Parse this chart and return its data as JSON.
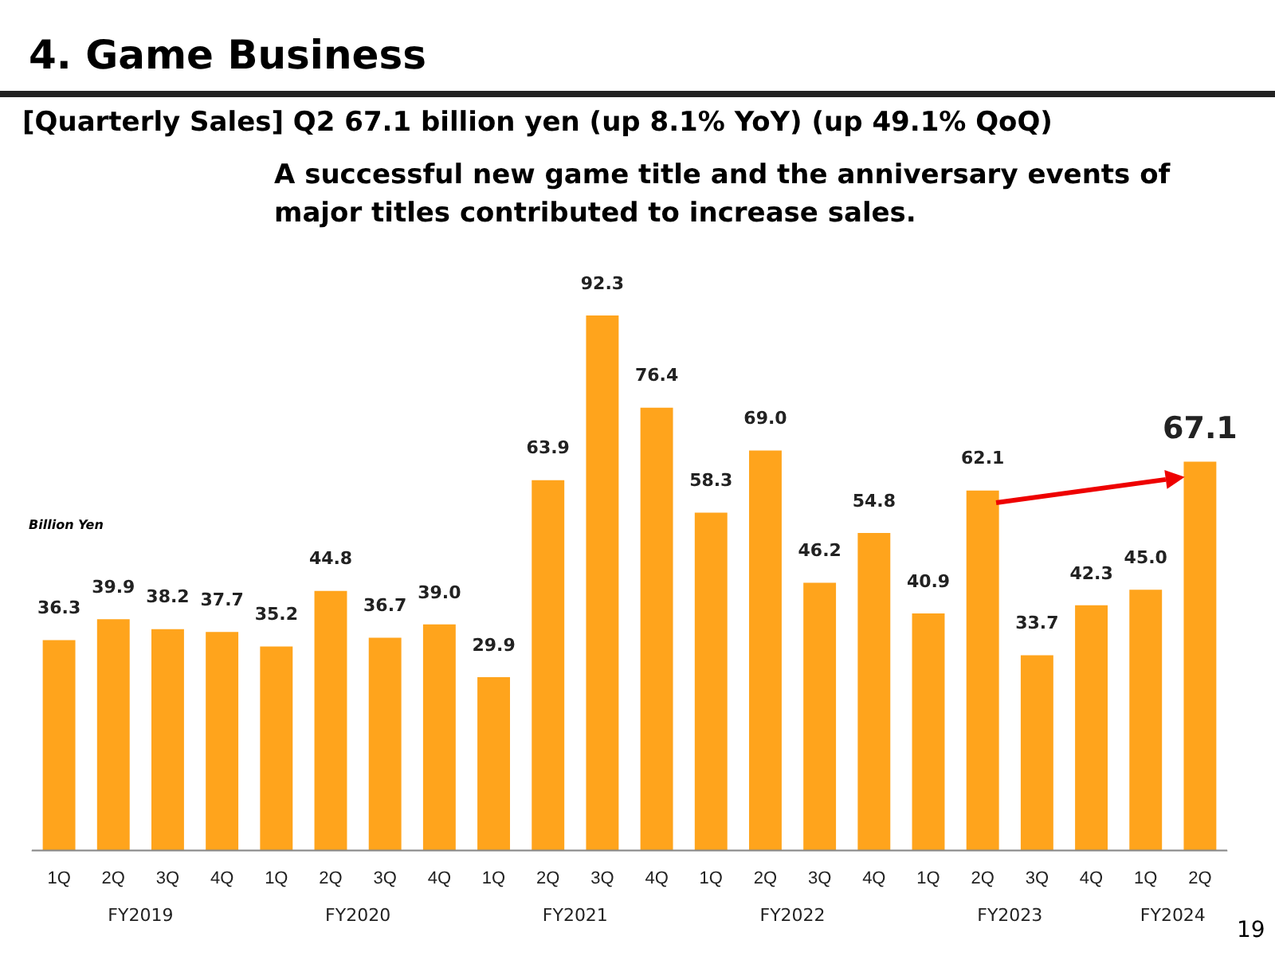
{
  "chart_data": {
    "type": "bar",
    "title": "4.  Game Business",
    "subtitle": "[Quarterly Sales] Q2 67.1 billion yen (up 8.1% YoY) (up 49.1% QoQ)",
    "ylabel": "Billion Yen",
    "categories": [
      "1Q",
      "2Q",
      "3Q",
      "4Q",
      "1Q",
      "2Q",
      "3Q",
      "4Q",
      "1Q",
      "2Q",
      "3Q",
      "4Q",
      "1Q",
      "2Q",
      "3Q",
      "4Q",
      "1Q",
      "2Q",
      "3Q",
      "4Q",
      "1Q",
      "2Q"
    ],
    "values": [
      36.3,
      39.9,
      38.2,
      37.7,
      35.2,
      44.8,
      36.7,
      39.0,
      29.9,
      63.9,
      92.3,
      76.4,
      58.3,
      69.0,
      46.2,
      54.8,
      40.9,
      62.1,
      33.7,
      42.3,
      45.0,
      67.1
    ],
    "color": "#ffa41c",
    "value_labels": [
      "36.3",
      "39.9",
      "38.2",
      "37.7",
      "35.2",
      "44.8",
      "36.7",
      "39.0",
      "29.9",
      "63.9",
      "92.3",
      "76.4",
      "58.3",
      "69.0",
      "46.2",
      "54.8",
      "40.9",
      "62.1",
      "33.7",
      "42.3",
      "45.0",
      "67.1"
    ],
    "grid": false,
    "legend": false,
    "annotations": [
      "A successful new game title and the anniversary events of major titles contributed to increase sales.",
      "FY2019",
      "FY2020",
      "FY2021",
      "FY2022",
      "FY2023",
      "FY2024",
      "19"
    ]
  }
}
